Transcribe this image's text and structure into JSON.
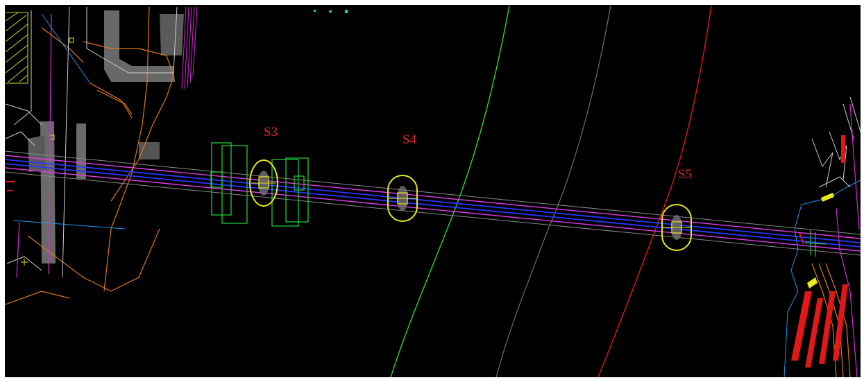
{
  "canvas": {
    "background": "#000000",
    "frame_color": "#ffffff"
  },
  "colors": {
    "road_axis_magenta": "#e23be6",
    "road_axis_blue": "#2a35ff",
    "road_edge_grey": "#8a8a8a",
    "pier_outline_yellow": "#e8e81a",
    "foundation_green": "#22c93a",
    "contour_green": "#2fd52f",
    "contour_grey": "#6e6e6e",
    "contour_red": "#e01818",
    "label_red": "#e02b2b",
    "structure_orange": "#e07a18",
    "hatch_yellow": "#d8d81e",
    "cyan_marks": "#19d1d1"
  },
  "piers": [
    {
      "id": "S3",
      "label": "S3"
    },
    {
      "id": "S4",
      "label": "S4"
    },
    {
      "id": "S5",
      "label": "S5"
    }
  ]
}
